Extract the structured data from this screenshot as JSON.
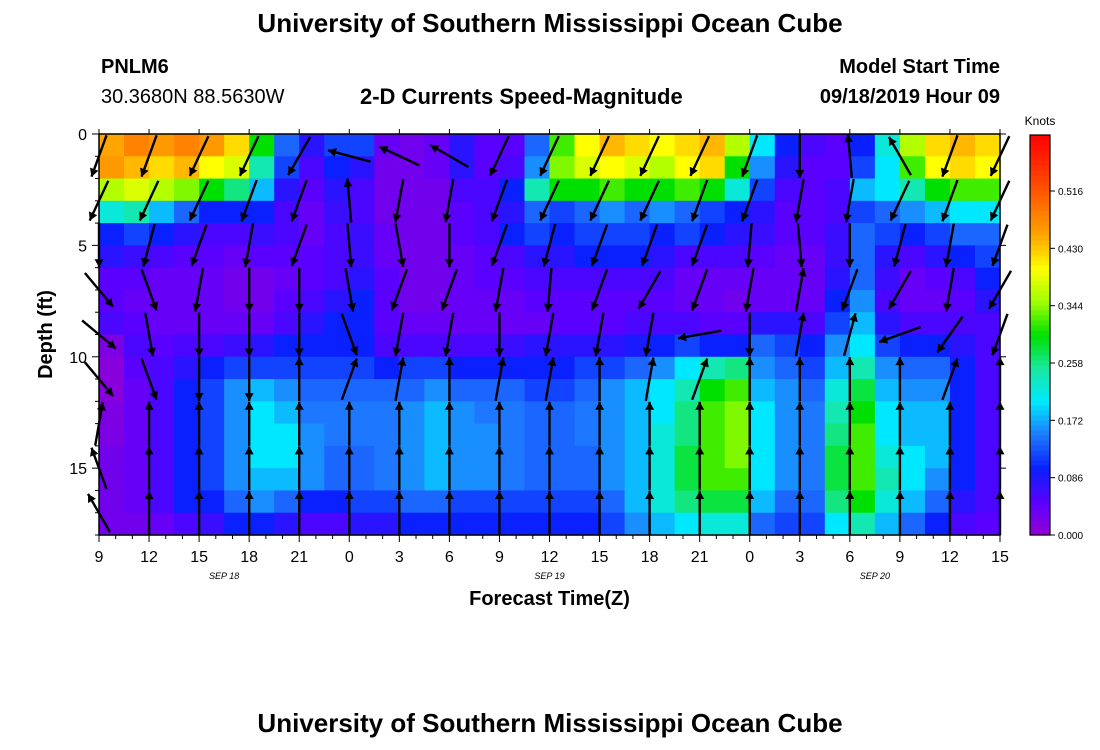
{
  "page": {
    "title_top": "University of Southern Mississippi Ocean Cube",
    "title_bottom": "University of Southern Mississippi Ocean Cube",
    "station_id": "PNLM6",
    "station_coords": "30.3680N 88.5630W",
    "subtitle": "2-D Currents Speed-Magnitude",
    "model_start_label": "Model Start Time",
    "model_start_value": "09/18/2019 Hour 09"
  },
  "colors": {
    "ramp": [
      "#9400d3",
      "#5a00ff",
      "#0a20ff",
      "#1e78ff",
      "#00e8ff",
      "#18e8a0",
      "#00e000",
      "#a0ff00",
      "#ffff00",
      "#ffa500",
      "#ff6a00",
      "#ff3000",
      "#ff0000"
    ]
  },
  "chart_data": {
    "type": "heatmap",
    "title": "2-D Currents Speed-Magnitude",
    "xlabel": "Forecast Time(Z)",
    "ylabel": "Depth (ft)",
    "x_tick_labels": [
      "9",
      "12",
      "15",
      "18",
      "21",
      "0",
      "3",
      "6",
      "9",
      "12",
      "15",
      "18",
      "21",
      "0",
      "3",
      "6",
      "9",
      "12",
      "15"
    ],
    "x_range_hours": [
      0,
      54
    ],
    "date_labels": [
      {
        "text": "SEP 18",
        "hour": 7.5
      },
      {
        "text": "SEP 19",
        "hour": 27
      },
      {
        "text": "SEP 20",
        "hour": 46.5
      }
    ],
    "y_ticks": [
      0,
      5,
      10,
      15
    ],
    "y_tick_labels": [
      "0",
      "5",
      "10",
      "15"
    ],
    "ylim": [
      0,
      18
    ],
    "y_inverted": true,
    "colorbar": {
      "title": "Knots",
      "tick_values": [
        0.0,
        0.086,
        0.172,
        0.258,
        0.344,
        0.43,
        0.516
      ],
      "tick_labels": [
        "0.000",
        "0.086",
        "0.172",
        "0.258",
        "0.344",
        "0.430",
        "0.516"
      ],
      "range": [
        0,
        0.6
      ]
    },
    "grid_cols": 36,
    "grid_rows": 18,
    "speed_knots": [
      [
        0.45,
        0.48,
        0.46,
        0.48,
        0.46,
        0.42,
        0.3,
        0.14,
        0.08,
        0.12,
        0.12,
        0.04,
        0.03,
        0.04,
        0.08,
        0.05,
        0.05,
        0.14,
        0.32,
        0.4,
        0.44,
        0.42,
        0.4,
        0.42,
        0.44,
        0.36,
        0.2,
        0.1,
        0.06,
        0.05,
        0.1,
        0.22,
        0.36,
        0.42,
        0.44,
        0.42
      ],
      [
        0.46,
        0.44,
        0.42,
        0.44,
        0.4,
        0.38,
        0.24,
        0.12,
        0.06,
        0.1,
        0.08,
        0.03,
        0.03,
        0.04,
        0.08,
        0.05,
        0.06,
        0.16,
        0.34,
        0.38,
        0.4,
        0.38,
        0.36,
        0.4,
        0.42,
        0.3,
        0.16,
        0.08,
        0.05,
        0.05,
        0.12,
        0.2,
        0.32,
        0.4,
        0.42,
        0.4
      ],
      [
        0.36,
        0.38,
        0.36,
        0.34,
        0.3,
        0.26,
        0.18,
        0.08,
        0.05,
        0.08,
        0.06,
        0.03,
        0.03,
        0.03,
        0.06,
        0.06,
        0.1,
        0.24,
        0.3,
        0.3,
        0.32,
        0.3,
        0.3,
        0.32,
        0.3,
        0.22,
        0.12,
        0.06,
        0.05,
        0.06,
        0.18,
        0.2,
        0.24,
        0.3,
        0.32,
        0.32
      ],
      [
        0.22,
        0.24,
        0.18,
        0.14,
        0.1,
        0.1,
        0.1,
        0.06,
        0.04,
        0.07,
        0.06,
        0.03,
        0.03,
        0.03,
        0.05,
        0.06,
        0.08,
        0.14,
        0.12,
        0.14,
        0.16,
        0.14,
        0.16,
        0.14,
        0.12,
        0.1,
        0.08,
        0.05,
        0.05,
        0.06,
        0.12,
        0.14,
        0.16,
        0.18,
        0.2,
        0.2
      ],
      [
        0.1,
        0.12,
        0.1,
        0.08,
        0.06,
        0.06,
        0.07,
        0.06,
        0.04,
        0.06,
        0.07,
        0.04,
        0.03,
        0.03,
        0.05,
        0.06,
        0.1,
        0.12,
        0.1,
        0.12,
        0.12,
        0.12,
        0.1,
        0.12,
        0.1,
        0.08,
        0.07,
        0.05,
        0.05,
        0.07,
        0.14,
        0.12,
        0.1,
        0.12,
        0.14,
        0.14
      ],
      [
        0.08,
        0.07,
        0.06,
        0.05,
        0.05,
        0.04,
        0.05,
        0.05,
        0.05,
        0.06,
        0.07,
        0.04,
        0.03,
        0.03,
        0.04,
        0.05,
        0.06,
        0.08,
        0.08,
        0.1,
        0.1,
        0.1,
        0.08,
        0.06,
        0.06,
        0.06,
        0.05,
        0.04,
        0.04,
        0.07,
        0.14,
        0.08,
        0.06,
        0.08,
        0.1,
        0.12
      ],
      [
        0.05,
        0.05,
        0.04,
        0.04,
        0.04,
        0.03,
        0.03,
        0.04,
        0.05,
        0.06,
        0.08,
        0.05,
        0.03,
        0.03,
        0.04,
        0.05,
        0.05,
        0.06,
        0.06,
        0.06,
        0.06,
        0.06,
        0.06,
        0.04,
        0.04,
        0.04,
        0.04,
        0.04,
        0.04,
        0.08,
        0.14,
        0.07,
        0.04,
        0.05,
        0.06,
        0.1
      ],
      [
        0.05,
        0.04,
        0.04,
        0.04,
        0.04,
        0.03,
        0.03,
        0.05,
        0.06,
        0.08,
        0.1,
        0.05,
        0.03,
        0.03,
        0.04,
        0.04,
        0.04,
        0.05,
        0.05,
        0.05,
        0.05,
        0.05,
        0.05,
        0.04,
        0.04,
        0.03,
        0.04,
        0.04,
        0.04,
        0.1,
        0.16,
        0.06,
        0.04,
        0.04,
        0.05,
        0.08
      ],
      [
        0.06,
        0.05,
        0.04,
        0.04,
        0.04,
        0.04,
        0.04,
        0.06,
        0.08,
        0.1,
        0.1,
        0.05,
        0.04,
        0.04,
        0.04,
        0.04,
        0.04,
        0.04,
        0.05,
        0.05,
        0.05,
        0.06,
        0.06,
        0.06,
        0.05,
        0.05,
        0.08,
        0.08,
        0.06,
        0.12,
        0.18,
        0.08,
        0.06,
        0.06,
        0.06,
        0.06
      ],
      [
        0.02,
        0.06,
        0.05,
        0.06,
        0.06,
        0.07,
        0.08,
        0.1,
        0.1,
        0.1,
        0.1,
        0.06,
        0.06,
        0.06,
        0.06,
        0.06,
        0.07,
        0.08,
        0.08,
        0.08,
        0.08,
        0.09,
        0.1,
        0.12,
        0.1,
        0.1,
        0.14,
        0.12,
        0.1,
        0.16,
        0.2,
        0.12,
        0.1,
        0.1,
        0.08,
        0.06
      ],
      [
        0.01,
        0.05,
        0.06,
        0.08,
        0.1,
        0.12,
        0.12,
        0.12,
        0.12,
        0.12,
        0.12,
        0.1,
        0.12,
        0.12,
        0.1,
        0.1,
        0.1,
        0.1,
        0.1,
        0.12,
        0.12,
        0.14,
        0.16,
        0.2,
        0.24,
        0.26,
        0.16,
        0.14,
        0.12,
        0.18,
        0.24,
        0.16,
        0.14,
        0.14,
        0.1,
        0.06
      ],
      [
        0.01,
        0.04,
        0.06,
        0.1,
        0.12,
        0.16,
        0.18,
        0.16,
        0.14,
        0.14,
        0.14,
        0.14,
        0.14,
        0.16,
        0.14,
        0.14,
        0.14,
        0.12,
        0.12,
        0.14,
        0.16,
        0.18,
        0.2,
        0.24,
        0.3,
        0.32,
        0.18,
        0.16,
        0.14,
        0.22,
        0.28,
        0.18,
        0.16,
        0.16,
        0.1,
        0.06
      ],
      [
        0.02,
        0.04,
        0.06,
        0.1,
        0.12,
        0.16,
        0.2,
        0.18,
        0.15,
        0.15,
        0.15,
        0.15,
        0.16,
        0.18,
        0.16,
        0.15,
        0.15,
        0.14,
        0.14,
        0.15,
        0.16,
        0.18,
        0.2,
        0.26,
        0.32,
        0.34,
        0.2,
        0.16,
        0.15,
        0.24,
        0.3,
        0.2,
        0.18,
        0.18,
        0.1,
        0.06
      ],
      [
        0.02,
        0.04,
        0.06,
        0.1,
        0.12,
        0.16,
        0.2,
        0.2,
        0.16,
        0.15,
        0.15,
        0.15,
        0.16,
        0.18,
        0.16,
        0.16,
        0.15,
        0.14,
        0.14,
        0.15,
        0.16,
        0.18,
        0.22,
        0.26,
        0.32,
        0.34,
        0.2,
        0.16,
        0.15,
        0.26,
        0.32,
        0.2,
        0.18,
        0.18,
        0.1,
        0.06
      ],
      [
        0.03,
        0.04,
        0.06,
        0.1,
        0.12,
        0.16,
        0.2,
        0.2,
        0.16,
        0.14,
        0.14,
        0.15,
        0.16,
        0.18,
        0.16,
        0.16,
        0.15,
        0.14,
        0.14,
        0.14,
        0.16,
        0.18,
        0.22,
        0.28,
        0.32,
        0.34,
        0.2,
        0.16,
        0.15,
        0.28,
        0.32,
        0.22,
        0.2,
        0.18,
        0.1,
        0.06
      ],
      [
        0.03,
        0.04,
        0.06,
        0.1,
        0.12,
        0.16,
        0.18,
        0.18,
        0.16,
        0.14,
        0.14,
        0.15,
        0.16,
        0.18,
        0.16,
        0.16,
        0.15,
        0.14,
        0.14,
        0.14,
        0.16,
        0.18,
        0.22,
        0.28,
        0.32,
        0.32,
        0.2,
        0.16,
        0.15,
        0.28,
        0.32,
        0.24,
        0.2,
        0.16,
        0.1,
        0.06
      ],
      [
        0.03,
        0.04,
        0.06,
        0.1,
        0.1,
        0.14,
        0.16,
        0.14,
        0.1,
        0.1,
        0.12,
        0.12,
        0.14,
        0.14,
        0.12,
        0.12,
        0.12,
        0.12,
        0.12,
        0.12,
        0.14,
        0.18,
        0.22,
        0.26,
        0.28,
        0.28,
        0.18,
        0.14,
        0.14,
        0.26,
        0.3,
        0.22,
        0.18,
        0.14,
        0.08,
        0.06
      ],
      [
        0.03,
        0.03,
        0.04,
        0.06,
        0.07,
        0.1,
        0.1,
        0.08,
        0.06,
        0.06,
        0.08,
        0.08,
        0.1,
        0.1,
        0.1,
        0.1,
        0.1,
        0.1,
        0.1,
        0.1,
        0.12,
        0.16,
        0.18,
        0.2,
        0.22,
        0.22,
        0.14,
        0.12,
        0.12,
        0.2,
        0.24,
        0.18,
        0.14,
        0.1,
        0.06,
        0.05
      ]
    ],
    "vector_columns": 19,
    "vector_rows": 9,
    "vector_direction_deg": [
      [
        200,
        200,
        205,
        205,
        210,
        285,
        295,
        300,
        205,
        205,
        205,
        205,
        205,
        200,
        180,
        355,
        330,
        200,
        205
      ],
      [
        205,
        205,
        205,
        200,
        200,
        355,
        190,
        190,
        200,
        205,
        205,
        205,
        200,
        200,
        190,
        190,
        205,
        200,
        205
      ],
      [
        180,
        195,
        200,
        190,
        200,
        175,
        170,
        180,
        200,
        195,
        200,
        200,
        200,
        185,
        175,
        180,
        195,
        190,
        200
      ],
      [
        140,
        160,
        190,
        180,
        180,
        170,
        200,
        200,
        190,
        185,
        200,
        210,
        200,
        190,
        10,
        200,
        210,
        190,
        210
      ],
      [
        130,
        170,
        180,
        180,
        180,
        160,
        190,
        190,
        180,
        190,
        190,
        190,
        260,
        180,
        10,
        15,
        250,
        215,
        200
      ],
      [
        140,
        160,
        180,
        180,
        0,
        20,
        10,
        0,
        10,
        10,
        0,
        10,
        20,
        0,
        0,
        0,
        0,
        20,
        0
      ],
      [
        10,
        0,
        0,
        0,
        0,
        0,
        0,
        0,
        0,
        0,
        0,
        0,
        0,
        0,
        0,
        0,
        0,
        0,
        0
      ],
      [
        340,
        0,
        0,
        0,
        0,
        0,
        0,
        0,
        0,
        0,
        0,
        0,
        0,
        0,
        0,
        0,
        0,
        0,
        0
      ],
      [
        330,
        0,
        0,
        0,
        0,
        0,
        0,
        0,
        0,
        0,
        0,
        0,
        0,
        0,
        0,
        0,
        0,
        0,
        0
      ]
    ]
  }
}
